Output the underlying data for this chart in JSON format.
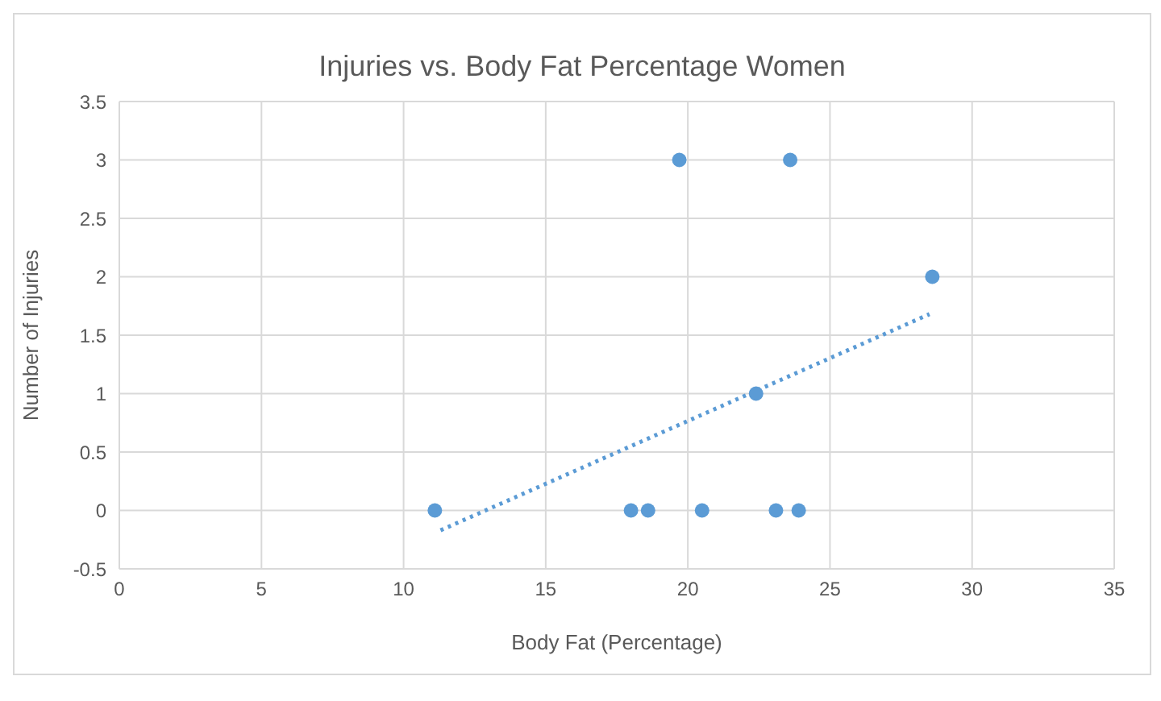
{
  "chart_data": {
    "type": "scatter",
    "title": "Injuries vs. Body Fat Percentage Women",
    "xlabel": "Body Fat (Percentage)",
    "ylabel": "Number of Injuries",
    "xlim": [
      0,
      35
    ],
    "xticks": [
      0,
      5,
      10,
      15,
      20,
      25,
      30,
      35
    ],
    "ylim": [
      -0.5,
      3.5
    ],
    "yticks": [
      -0.5,
      0,
      0.5,
      1,
      1.5,
      2,
      2.5,
      3,
      3.5
    ],
    "grid": true,
    "marker": "circle",
    "series": [
      {
        "color": "#5b9bd5",
        "x": [
          11.1,
          18.0,
          18.6,
          20.5,
          23.1,
          23.9,
          19.7,
          23.6,
          22.4,
          28.6
        ],
        "values": [
          0,
          0,
          0,
          0,
          0,
          0,
          3,
          3,
          1,
          2
        ]
      },
      {
        "type": "line",
        "color": "#5b9bd5",
        "line_style": "dotted",
        "marker": "none",
        "x": [
          11.3,
          28.5
        ],
        "values": [
          -0.17,
          1.68
        ]
      }
    ]
  }
}
